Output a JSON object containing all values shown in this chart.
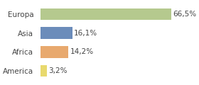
{
  "categories": [
    "Europa",
    "Asia",
    "Africa",
    "America"
  ],
  "values": [
    66.5,
    16.1,
    14.2,
    3.2
  ],
  "labels": [
    "66,5%",
    "16,1%",
    "14,2%",
    "3,2%"
  ],
  "bar_colors": [
    "#b5c98e",
    "#6b8cba",
    "#e8a96e",
    "#e8d96e"
  ],
  "background_color": "#ffffff",
  "xlim": [
    0,
    75
  ],
  "bar_height": 0.62,
  "label_fontsize": 7.5,
  "tick_fontsize": 7.5
}
